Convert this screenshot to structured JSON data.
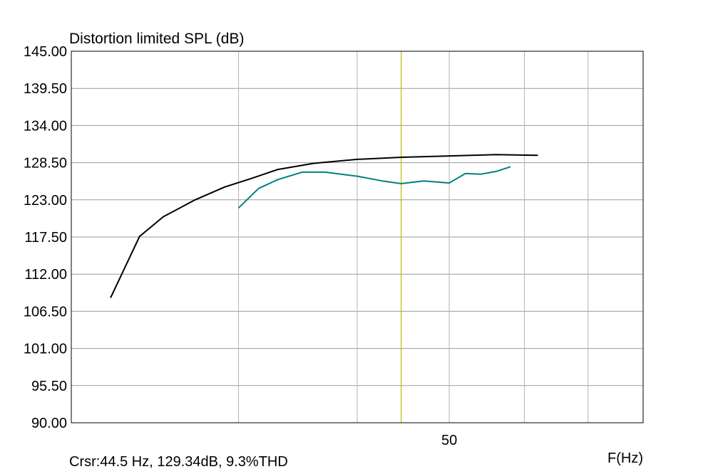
{
  "chart_data": {
    "type": "line",
    "title": "Distortion limited SPL (dB)",
    "xlabel": "F(Hz)",
    "x_scale": "log",
    "xlim": [
      20,
      80
    ],
    "ylim": [
      90,
      145
    ],
    "y_ticks": [
      "145.00",
      "139.50",
      "134.00",
      "128.50",
      "123.00",
      "117.50",
      "112.00",
      "106.50",
      "101.00",
      "95.50",
      "90.00"
    ],
    "x_tick_labels": [
      {
        "x": 50,
        "label": "50"
      }
    ],
    "x_gridlines": [
      30,
      40,
      50,
      60,
      70
    ],
    "grid": true,
    "series": [
      {
        "color": "#000000",
        "x": [
          22,
          23.6,
          25,
          27,
          29,
          31,
          33,
          36,
          40,
          44.5,
          50,
          56,
          62
        ],
        "y": [
          108.5,
          117.6,
          120.5,
          123.0,
          124.9,
          126.2,
          127.5,
          128.4,
          129.0,
          129.3,
          129.5,
          129.7,
          129.6
        ]
      },
      {
        "color": "#008080",
        "x": [
          30,
          31.5,
          33,
          35,
          37,
          40,
          42.5,
          44.5,
          47,
          50,
          52,
          54,
          56,
          58
        ],
        "y": [
          121.8,
          124.7,
          126.0,
          127.1,
          127.1,
          126.5,
          125.8,
          125.4,
          125.8,
          125.5,
          126.9,
          126.8,
          127.2,
          127.9
        ]
      }
    ],
    "cursor": {
      "x": 44.5,
      "color": "#b8b800"
    },
    "cursor_readout": "Crsr:44.5 Hz, 129.34dB, 9.3%THD"
  }
}
